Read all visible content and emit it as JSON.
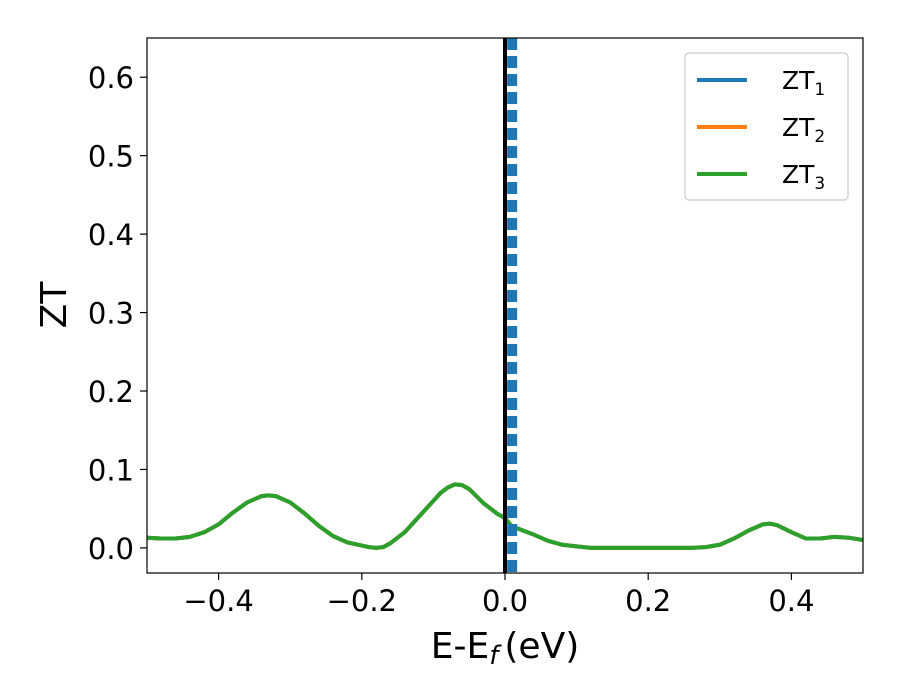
{
  "chart_data": {
    "type": "line",
    "xlabel": "E-E",
    "xlabel_sub": "f",
    "xlabel_unit": "(eV)",
    "ylabel": "ZT",
    "xlim": [
      -0.5,
      0.5
    ],
    "ylim": [
      -0.032,
      0.65
    ],
    "x_ticks": [
      -0.4,
      -0.2,
      0.0,
      0.2,
      0.4
    ],
    "x_tick_labels": [
      "−0.4",
      "−0.2",
      "0.0",
      "0.2",
      "0.4"
    ],
    "y_ticks": [
      0.0,
      0.1,
      0.2,
      0.3,
      0.4,
      0.5,
      0.6
    ],
    "y_tick_labels": [
      "0.0",
      "0.1",
      "0.2",
      "0.3",
      "0.4",
      "0.5",
      "0.6"
    ],
    "grid": false,
    "legend_position": "top-right",
    "x": [
      -0.5,
      -0.48,
      -0.46,
      -0.44,
      -0.42,
      -0.4,
      -0.38,
      -0.36,
      -0.34,
      -0.33,
      -0.32,
      -0.3,
      -0.28,
      -0.26,
      -0.24,
      -0.22,
      -0.2,
      -0.19,
      -0.18,
      -0.17,
      -0.16,
      -0.14,
      -0.12,
      -0.1,
      -0.09,
      -0.08,
      -0.07,
      -0.06,
      -0.05,
      -0.04,
      -0.03,
      -0.02,
      -0.01,
      0.0,
      0.01,
      0.02,
      0.04,
      0.06,
      0.08,
      0.1,
      0.12,
      0.14,
      0.16,
      0.18,
      0.2,
      0.22,
      0.24,
      0.26,
      0.28,
      0.3,
      0.32,
      0.34,
      0.36,
      0.37,
      0.38,
      0.4,
      0.42,
      0.44,
      0.46,
      0.48,
      0.5
    ],
    "series": [
      {
        "name": "ZT",
        "name_sub": "1",
        "color": "#1f77b4",
        "values": [
          0.013,
          0.012,
          0.012,
          0.014,
          0.02,
          0.03,
          0.045,
          0.058,
          0.066,
          0.067,
          0.066,
          0.058,
          0.044,
          0.028,
          0.015,
          0.007,
          0.003,
          0.001,
          0.0,
          0.001,
          0.006,
          0.02,
          0.04,
          0.06,
          0.07,
          0.077,
          0.081,
          0.08,
          0.075,
          0.066,
          0.057,
          0.05,
          0.043,
          0.038,
          0.027,
          0.024,
          0.017,
          0.009,
          0.004,
          0.002,
          0.0,
          0.0,
          0.0,
          0.0,
          0.0,
          0.0,
          0.0,
          0.0,
          0.001,
          0.004,
          0.012,
          0.022,
          0.03,
          0.031,
          0.029,
          0.02,
          0.012,
          0.012,
          0.014,
          0.013,
          0.01
        ]
      },
      {
        "name": "ZT",
        "name_sub": "2",
        "color": "#ff7f0e",
        "values": [
          0.013,
          0.012,
          0.012,
          0.014,
          0.02,
          0.03,
          0.045,
          0.058,
          0.066,
          0.067,
          0.066,
          0.058,
          0.044,
          0.028,
          0.015,
          0.007,
          0.003,
          0.001,
          0.0,
          0.001,
          0.006,
          0.02,
          0.04,
          0.06,
          0.07,
          0.077,
          0.081,
          0.08,
          0.075,
          0.066,
          0.057,
          0.05,
          0.043,
          0.038,
          0.027,
          0.024,
          0.017,
          0.009,
          0.004,
          0.002,
          0.0,
          0.0,
          0.0,
          0.0,
          0.0,
          0.0,
          0.0,
          0.0,
          0.001,
          0.004,
          0.012,
          0.022,
          0.03,
          0.031,
          0.029,
          0.02,
          0.012,
          0.012,
          0.014,
          0.013,
          0.01
        ]
      },
      {
        "name": "ZT",
        "name_sub": "3",
        "color": "#2ca02c",
        "values": [
          0.013,
          0.012,
          0.012,
          0.014,
          0.02,
          0.03,
          0.045,
          0.058,
          0.066,
          0.067,
          0.066,
          0.058,
          0.044,
          0.028,
          0.015,
          0.007,
          0.003,
          0.001,
          0.0,
          0.001,
          0.006,
          0.02,
          0.04,
          0.06,
          0.07,
          0.077,
          0.081,
          0.08,
          0.075,
          0.066,
          0.057,
          0.05,
          0.043,
          0.038,
          0.027,
          0.024,
          0.017,
          0.009,
          0.004,
          0.002,
          0.0,
          0.0,
          0.0,
          0.0,
          0.0,
          0.0,
          0.0,
          0.0,
          0.001,
          0.004,
          0.012,
          0.022,
          0.03,
          0.031,
          0.029,
          0.02,
          0.012,
          0.012,
          0.014,
          0.013,
          0.01
        ]
      }
    ],
    "reference_lines": [
      {
        "x": 0.0,
        "style": "solid",
        "color": "#000000"
      },
      {
        "x": 0.01,
        "style": "dashed",
        "color": "#1f77b4"
      }
    ]
  }
}
